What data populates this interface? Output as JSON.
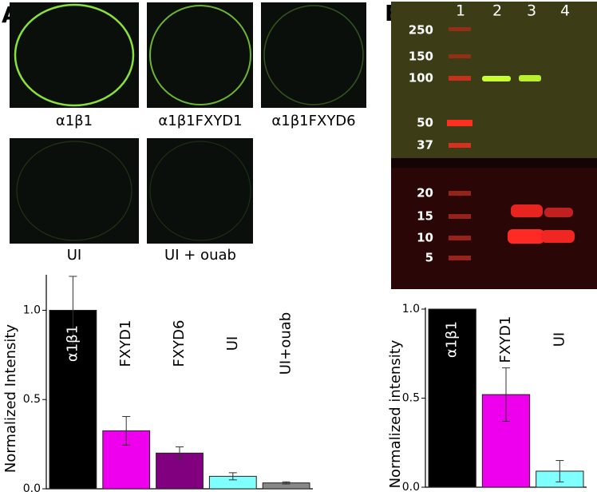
{
  "panel_a": {
    "label": "A",
    "captions": [
      "α1β1",
      "α1β1FXYD1",
      "α1β1FXYD6",
      "UI",
      "UI + ouab"
    ]
  },
  "panel_b": {
    "label": "B",
    "lanes": [
      "1",
      "2",
      "3",
      "4"
    ],
    "markers": [
      "250",
      "150",
      "100",
      "50",
      "37",
      "20",
      "15",
      "10",
      "5"
    ]
  },
  "chart_data": [
    {
      "type": "bar",
      "y_label": "Normalized Intensity",
      "categories": [
        "α1β1",
        "FXYD1",
        "FXYD6",
        "UI",
        "UI+ouab"
      ],
      "values": [
        1.0,
        0.325,
        0.2,
        0.07,
        0.033
      ],
      "errors": [
        0.19,
        0.08,
        0.035,
        0.02,
        0.006
      ],
      "colors": [
        "#000000",
        "#ee00ee",
        "#800080",
        "#80ffff",
        "#888888"
      ],
      "ylim": [
        0,
        1.19
      ],
      "yticks": [
        {
          "value": 0,
          "label": "0.0"
        },
        {
          "value": 0.5,
          "label": "0.5"
        },
        {
          "value": 1,
          "label": "1.0"
        }
      ]
    },
    {
      "type": "bar",
      "y_label": "Normalized intensity",
      "categories": [
        "α1β1",
        "FXYD1",
        "UI"
      ],
      "values": [
        1.0,
        0.52,
        0.09
      ],
      "errors": [
        0,
        0.15,
        0.06
      ],
      "colors": [
        "#000000",
        "#ee00ee",
        "#80ffff"
      ],
      "ylim": [
        0,
        1.0
      ],
      "yticks": [
        {
          "value": 0,
          "label": "0.0"
        },
        {
          "value": 0.5,
          "label": "0.5"
        },
        {
          "value": 1,
          "label": "1.0"
        }
      ]
    }
  ]
}
